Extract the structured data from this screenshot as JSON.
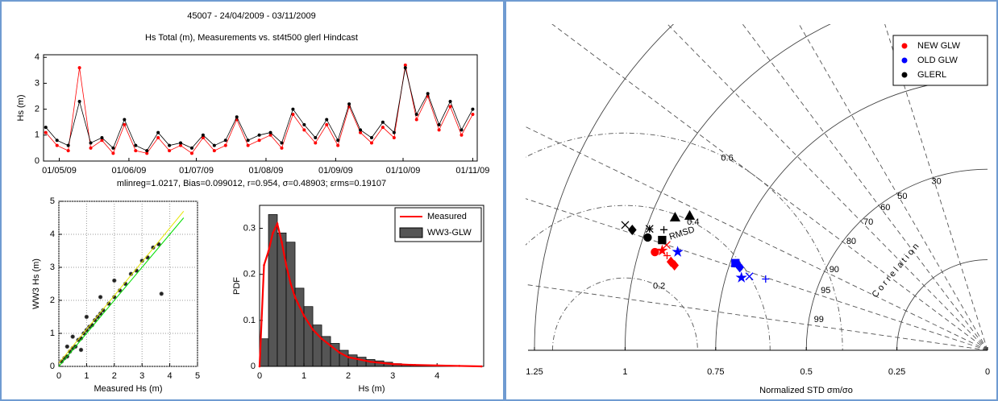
{
  "chart_data": [
    {
      "type": "line",
      "title": "45007 - 24/04/2009 - 03/11/2009",
      "subtitle": "Hs Total (m), Measurements vs. st4t500 glerl Hindcast",
      "annotation": "mlinreg=1.0217, Bias=0.099012, r=0.954, σ=0.48903; εrms=0.19107",
      "annotation_color": "#ff3333",
      "ylabel": "Hs (m)",
      "xlim": [
        "2009-04-24",
        "2009-11-03"
      ],
      "xticks": [
        {
          "value": "2009-05-01",
          "label": "01/05/09"
        },
        {
          "value": "2009-06-01",
          "label": "01/06/09"
        },
        {
          "value": "2009-07-01",
          "label": "01/07/09"
        },
        {
          "value": "2009-08-01",
          "label": "01/08/09"
        },
        {
          "value": "2009-09-01",
          "label": "01/09/09"
        },
        {
          "value": "2009-10-01",
          "label": "01/10/09"
        },
        {
          "value": "2009-11-01",
          "label": "01/11/09"
        }
      ],
      "ylim": [
        0,
        4.1
      ],
      "yticks": [
        0,
        1,
        2,
        3,
        4
      ],
      "grid": false,
      "x": [
        "2009-04-25",
        "2009-04-30",
        "2009-05-05",
        "2009-05-10",
        "2009-05-15",
        "2009-05-20",
        "2009-05-25",
        "2009-05-30",
        "2009-06-04",
        "2009-06-09",
        "2009-06-14",
        "2009-06-19",
        "2009-06-24",
        "2009-06-29",
        "2009-07-04",
        "2009-07-09",
        "2009-07-14",
        "2009-07-19",
        "2009-07-24",
        "2009-07-29",
        "2009-08-03",
        "2009-08-08",
        "2009-08-13",
        "2009-08-18",
        "2009-08-23",
        "2009-08-28",
        "2009-09-02",
        "2009-09-07",
        "2009-09-12",
        "2009-09-17",
        "2009-09-22",
        "2009-09-27",
        "2009-10-02",
        "2009-10-07",
        "2009-10-12",
        "2009-10-17",
        "2009-10-22",
        "2009-10-27",
        "2009-11-01"
      ],
      "series": [
        {
          "color": "#ff0000",
          "values": [
            1.1,
            0.6,
            0.4,
            3.6,
            0.5,
            0.8,
            0.3,
            1.4,
            0.4,
            0.3,
            0.9,
            0.4,
            0.6,
            0.3,
            0.9,
            0.4,
            0.6,
            1.6,
            0.6,
            0.8,
            1.0,
            0.5,
            1.8,
            1.2,
            0.7,
            1.4,
            0.6,
            2.1,
            1.1,
            0.7,
            1.3,
            0.9,
            3.7,
            1.6,
            2.5,
            1.2,
            2.1,
            1.0,
            1.8
          ]
        },
        {
          "color": "#000000",
          "values": [
            1.3,
            0.8,
            0.6,
            2.3,
            0.7,
            0.9,
            0.5,
            1.6,
            0.6,
            0.4,
            1.1,
            0.6,
            0.7,
            0.5,
            1.0,
            0.6,
            0.8,
            1.7,
            0.8,
            1.0,
            1.1,
            0.7,
            2.0,
            1.4,
            0.9,
            1.6,
            0.8,
            2.2,
            1.2,
            0.9,
            1.5,
            1.1,
            3.6,
            1.8,
            2.6,
            1.4,
            2.3,
            1.2,
            2.0
          ]
        }
      ]
    },
    {
      "type": "scatter",
      "xlabel": "Measured Hs (m)",
      "ylabel": "WW3 Hs (m)",
      "xlim": [
        0,
        5
      ],
      "ylim": [
        0,
        5
      ],
      "xticks": [
        0,
        1,
        2,
        3,
        4,
        5
      ],
      "yticks": [
        0,
        1,
        2,
        3,
        4,
        5
      ],
      "grid": true,
      "color": "#222222",
      "x": [
        0.1,
        0.2,
        0.3,
        0.4,
        0.5,
        0.6,
        0.7,
        0.8,
        0.9,
        1.0,
        1.1,
        1.2,
        1.3,
        1.4,
        1.5,
        1.6,
        1.8,
        2.0,
        2.2,
        2.4,
        2.6,
        2.8,
        3.0,
        3.2,
        3.4,
        3.6,
        0.5,
        1.0,
        1.5,
        2.0,
        0.3,
        0.8,
        3.7
      ],
      "values": [
        0.15,
        0.25,
        0.3,
        0.45,
        0.55,
        0.6,
        0.8,
        0.85,
        1.0,
        1.1,
        1.2,
        1.25,
        1.4,
        1.5,
        1.6,
        1.7,
        1.9,
        2.1,
        2.3,
        2.5,
        2.8,
        2.9,
        3.2,
        3.3,
        3.6,
        3.7,
        0.9,
        1.5,
        2.1,
        2.6,
        0.6,
        0.5,
        2.2
      ],
      "lines": [
        {
          "color": "#00dd00",
          "x": [
            0,
            4.5
          ],
          "values": [
            0,
            4.5
          ]
        },
        {
          "color": "#e6e600",
          "x": [
            0,
            4.5
          ],
          "values": [
            0.1,
            4.7
          ]
        }
      ]
    },
    {
      "type": "histogram",
      "xlabel": "Hs (m)",
      "ylabel": "PDF",
      "xlim": [
        0,
        5.05
      ],
      "ylim": [
        0,
        0.35
      ],
      "xticks": [
        0,
        1,
        2,
        3,
        4
      ],
      "yticks": [
        0,
        0.1,
        0.2,
        0.3
      ],
      "grid": false,
      "legend": "upper right",
      "name": "WW3-GLW",
      "color": "#555555",
      "bins": [
        0,
        0.2,
        0.4,
        0.6,
        0.8,
        1.0,
        1.2,
        1.4,
        1.6,
        1.8,
        2.0,
        2.2,
        2.4,
        2.6,
        2.8,
        3.0,
        3.2,
        3.4,
        3.6,
        3.8,
        4.0
      ],
      "values": [
        0.06,
        0.33,
        0.29,
        0.27,
        0.17,
        0.13,
        0.09,
        0.065,
        0.05,
        0.035,
        0.025,
        0.02,
        0.015,
        0.012,
        0.009,
        0.006,
        0.004,
        0.003,
        0.002,
        0.001
      ],
      "series": [
        {
          "name": "Measured",
          "color": "#ff0000",
          "x": [
            0,
            0.1,
            0.2,
            0.3,
            0.4,
            0.5,
            0.6,
            0.7,
            0.8,
            1.0,
            1.2,
            1.4,
            1.6,
            1.8,
            2.0,
            2.5,
            3.0,
            3.5,
            4.0,
            4.5,
            5.0
          ],
          "values": [
            0,
            0.22,
            0.25,
            0.29,
            0.31,
            0.27,
            0.22,
            0.18,
            0.15,
            0.11,
            0.08,
            0.06,
            0.045,
            0.03,
            0.02,
            0.01,
            0.005,
            0.003,
            0.002,
            0.001,
            0
          ]
        }
      ]
    },
    {
      "type": "taylor",
      "xlabel": "Normalized STD σm/σo",
      "stdlim": [
        0,
        1.25
      ],
      "stdticks": [
        1.25,
        1,
        0.75,
        0.5,
        0.25,
        0
      ],
      "corrticks": [
        {
          "value": 0.3,
          "label": "30"
        },
        {
          "value": 0.5,
          "label": "50"
        },
        {
          "value": 0.6,
          "label": "60"
        },
        {
          "value": 0.7,
          "label": "70"
        },
        {
          "value": 0.8,
          "label": "80"
        },
        {
          "value": 0.9,
          "label": "90"
        },
        {
          "value": 0.95,
          "label": "95"
        },
        {
          "value": 0.99,
          "label": "99"
        }
      ],
      "corr_label": "Correlation",
      "rmsdticks": [
        0.2,
        0.4,
        0.6
      ],
      "rmsd_label": "RMSD",
      "legend": "upper right",
      "series": [
        {
          "name": "NEW GLW",
          "color": "#ff0000",
          "std": [
            0.957,
            0.939,
            0.907,
            0.895,
            0.922,
            0.932
          ],
          "corr": [
            0.959,
            0.956,
            0.963,
            0.965,
            0.959,
            0.95
          ],
          "markers": [
            "circle",
            "star",
            "diamond",
            "diamond",
            "plus",
            "x"
          ]
        },
        {
          "name": "OLD GLW",
          "color": "#0000ff",
          "std": [
            0.736,
            0.721,
            0.708,
            0.688,
            0.643,
            0.897
          ],
          "corr": [
            0.945,
            0.948,
            0.959,
            0.955,
            0.952,
            0.953
          ],
          "markers": [
            "square",
            "diamond",
            "star",
            "x",
            "plus",
            "star"
          ]
        },
        {
          "name": "GLERL",
          "color": "#000000",
          "std": [
            1.058,
            1.035,
            0.991,
            0.988,
            0.953,
            0.948,
            0.937,
            0.902
          ],
          "corr": [
            0.945,
            0.947,
            0.941,
            0.949,
            0.937,
            0.947,
            0.92,
            0.911
          ],
          "markers": [
            "x",
            "diamond",
            "asterisk",
            "circle",
            "plus",
            "square",
            "triangle",
            "triangle"
          ]
        }
      ]
    }
  ]
}
